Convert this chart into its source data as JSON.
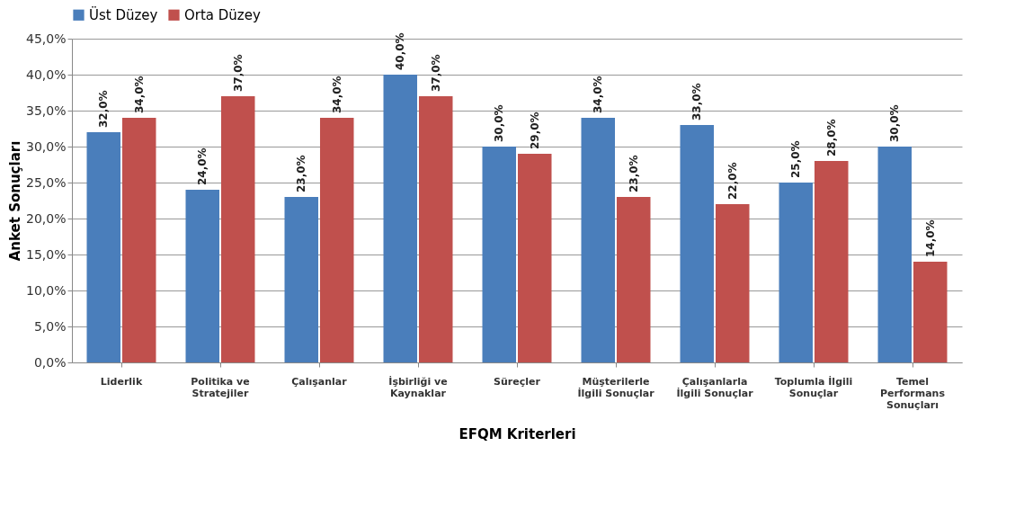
{
  "chart_data": {
    "type": "bar",
    "xlabel": "EFQM Kriterleri",
    "ylabel": "Anket Sonuçları",
    "categories": [
      "Liderlik",
      "Politika ve Stratejiler",
      "Çalışanlar",
      "İşbirliği ve Kaynaklar",
      "Süreçler",
      "Müşterilerle İlgili Sonuçlar",
      "Çalışanlarla İlgili Sonuçlar",
      "Toplumla İlgili Sonuçlar",
      "Temel Performans Sonuçları"
    ],
    "series": [
      {
        "name": "Üst Düzey",
        "color": "#4a7ebb",
        "values": [
          32,
          24,
          23,
          40,
          30,
          34,
          33,
          25,
          30
        ],
        "value_labels": [
          "32,0%",
          "24,0%",
          "23,0%",
          "40,0%",
          "30,0%",
          "34,0%",
          "33,0%",
          "25,0%",
          "30,0%"
        ]
      },
      {
        "name": "Orta Düzey",
        "color": "#c0504d",
        "values": [
          34,
          37,
          34,
          37,
          29,
          23,
          22,
          28,
          14
        ],
        "value_labels": [
          "34,0%",
          "37,0%",
          "34,0%",
          "37,0%",
          "29,0%",
          "23,0%",
          "22,0%",
          "28,0%",
          "14,0%"
        ]
      }
    ],
    "ylim": [
      0,
      45
    ],
    "yticks": [
      {
        "value": 0,
        "label": "0,0%"
      },
      {
        "value": 5,
        "label": "5,0%"
      },
      {
        "value": 10,
        "label": "10,0%"
      },
      {
        "value": 15,
        "label": "15,0%"
      },
      {
        "value": 20,
        "label": "20,0%"
      },
      {
        "value": 25,
        "label": "25,0%"
      },
      {
        "value": 30,
        "label": "30,0%"
      },
      {
        "value": 35,
        "label": "35,0%"
      },
      {
        "value": 40,
        "label": "40,0%"
      },
      {
        "value": 45,
        "label": "45,0%"
      }
    ],
    "grid": "y",
    "legend": "top"
  }
}
